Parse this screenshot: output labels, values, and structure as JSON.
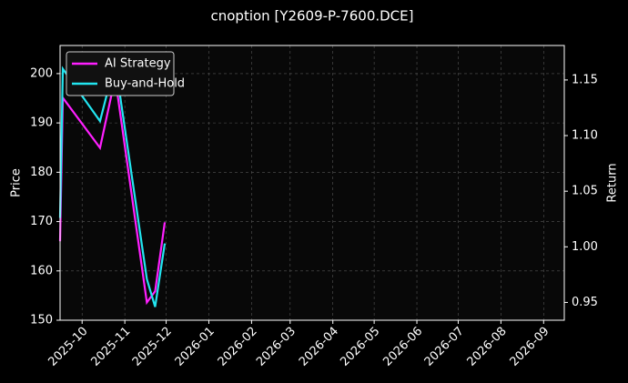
{
  "chart_data": {
    "type": "line",
    "title": "cnoption [Y2609-P-7600.DCE]",
    "ylabel": "Price",
    "y2label": "Return",
    "x": [
      "2025-09-15",
      "2025-09-17",
      "2025-10-14",
      "2025-10-25",
      "2025-11-17",
      "2025-11-23",
      "2025-11-30"
    ],
    "series": [
      {
        "name": "AI Strategy",
        "color": "#ff1fff",
        "axis": "y2",
        "values": [
          1.005,
          1.134,
          1.089,
          1.152,
          0.95,
          0.96,
          1.022
        ]
      },
      {
        "name": "Buy-and-Hold",
        "color": "#22e5f0",
        "axis": "y2",
        "values": [
          1.026,
          1.16,
          1.113,
          1.166,
          0.971,
          0.946,
          1.003
        ]
      }
    ],
    "xlim": [
      "2025-09-15",
      "2026-09-16"
    ],
    "xticks": [
      {
        "value": "2025-10-01",
        "label": "2025-10"
      },
      {
        "value": "2025-11-01",
        "label": "2025-11"
      },
      {
        "value": "2025-12-01",
        "label": "2025-12"
      },
      {
        "value": "2026-01-01",
        "label": "2026-01"
      },
      {
        "value": "2026-02-01",
        "label": "2026-02"
      },
      {
        "value": "2026-03-01",
        "label": "2026-03"
      },
      {
        "value": "2026-04-01",
        "label": "2026-04"
      },
      {
        "value": "2026-05-01",
        "label": "2026-05"
      },
      {
        "value": "2026-06-01",
        "label": "2026-06"
      },
      {
        "value": "2026-07-01",
        "label": "2026-07"
      },
      {
        "value": "2026-08-01",
        "label": "2026-08"
      },
      {
        "value": "2026-09-01",
        "label": "2026-09"
      }
    ],
    "ylim": [
      150,
      205.7
    ],
    "yticks": [
      150,
      160,
      170,
      180,
      190,
      200
    ],
    "y2lim": [
      0.934,
      1.181
    ],
    "y2ticks": [
      {
        "value": 0.95,
        "label": "0.95"
      },
      {
        "value": 1.0,
        "label": "1.00"
      },
      {
        "value": 1.05,
        "label": "1.05"
      },
      {
        "value": 1.1,
        "label": "1.10"
      },
      {
        "value": 1.15,
        "label": "1.15"
      }
    ],
    "grid": true,
    "legend": "upper left"
  }
}
